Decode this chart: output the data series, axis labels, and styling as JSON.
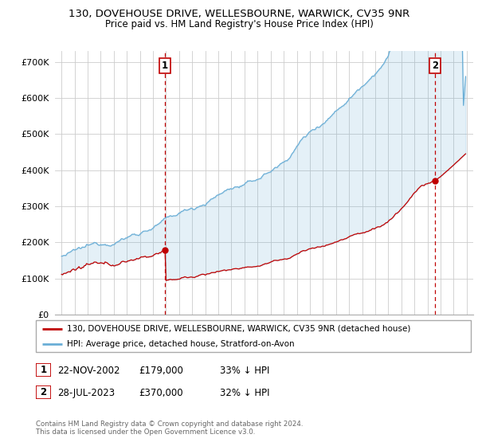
{
  "title": "130, DOVEHOUSE DRIVE, WELLESBOURNE, WARWICK, CV35 9NR",
  "subtitle": "Price paid vs. HM Land Registry's House Price Index (HPI)",
  "hpi_color": "#6aaed6",
  "price_color": "#c00000",
  "vline_color": "#c00000",
  "background_color": "#ffffff",
  "grid_color": "#cccccc",
  "sale1_date_num": 2002.896,
  "sale1_price": 179000,
  "sale2_date_num": 2023.572,
  "sale2_price": 370000,
  "ylim": [
    0,
    730000
  ],
  "xlim_start": 1994.5,
  "xlim_end": 2026.5,
  "legend_line1": "130, DOVEHOUSE DRIVE, WELLESBOURNE, WARWICK, CV35 9NR (detached house)",
  "legend_line2": "HPI: Average price, detached house, Stratford-on-Avon",
  "footer": "Contains HM Land Registry data © Crown copyright and database right 2024.\nThis data is licensed under the Open Government Licence v3.0.",
  "yticks": [
    0,
    100000,
    200000,
    300000,
    400000,
    500000,
    600000,
    700000
  ],
  "ytick_labels": [
    "£0",
    "£100K",
    "£200K",
    "£300K",
    "£400K",
    "£500K",
    "£600K",
    "£700K"
  ],
  "fill_alpha": 0.18
}
